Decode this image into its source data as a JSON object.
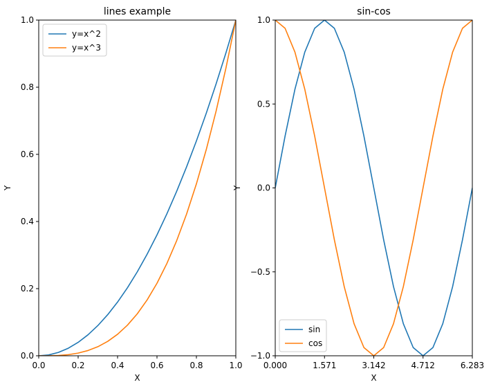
{
  "chart_data": [
    {
      "type": "line",
      "title": "lines example",
      "xlabel": "X",
      "ylabel": "Y",
      "xlim": [
        0,
        1
      ],
      "ylim": [
        0,
        1
      ],
      "xticks": [
        0.0,
        0.2,
        0.4,
        0.6,
        0.8,
        1.0
      ],
      "xtick_labels": [
        "0.0",
        "0.2",
        "0.4",
        "0.6",
        "0.8",
        "1.0"
      ],
      "yticks": [
        0.0,
        0.2,
        0.4,
        0.6,
        0.8,
        1.0
      ],
      "ytick_labels": [
        "0.0",
        "0.2",
        "0.4",
        "0.6",
        "0.8",
        "1.0"
      ],
      "grid": false,
      "legend": "upper-left",
      "series": [
        {
          "name": "y=x^2",
          "color": "#1f77b4",
          "x": [
            0,
            0.05,
            0.1,
            0.15,
            0.2,
            0.25,
            0.3,
            0.35,
            0.4,
            0.45,
            0.5,
            0.55,
            0.6,
            0.65,
            0.7,
            0.75,
            0.8,
            0.85,
            0.9,
            0.95,
            1.0
          ],
          "y": [
            0,
            0.0025,
            0.01,
            0.0225,
            0.04,
            0.0625,
            0.09,
            0.1225,
            0.16,
            0.2025,
            0.25,
            0.3025,
            0.36,
            0.4225,
            0.49,
            0.5625,
            0.64,
            0.7225,
            0.81,
            0.9025,
            1.0
          ]
        },
        {
          "name": "y=x^3",
          "color": "#ff7f0e",
          "x": [
            0,
            0.05,
            0.1,
            0.15,
            0.2,
            0.25,
            0.3,
            0.35,
            0.4,
            0.45,
            0.5,
            0.55,
            0.6,
            0.65,
            0.7,
            0.75,
            0.8,
            0.85,
            0.9,
            0.95,
            1.0
          ],
          "y": [
            0,
            0.000125,
            0.001,
            0.003375,
            0.008,
            0.015625,
            0.027,
            0.042875,
            0.064,
            0.091125,
            0.125,
            0.166375,
            0.216,
            0.274625,
            0.343,
            0.421875,
            0.512,
            0.614125,
            0.729,
            0.857375,
            1.0
          ]
        }
      ]
    },
    {
      "type": "line",
      "title": "sin-cos",
      "xlabel": "X",
      "ylabel": "Y",
      "xlim": [
        0,
        6.283
      ],
      "ylim": [
        -1,
        1
      ],
      "xticks": [
        0,
        1.571,
        3.142,
        4.712,
        6.283
      ],
      "xtick_labels": [
        "0.000",
        "1.571",
        "3.142",
        "4.712",
        "6.283"
      ],
      "yticks": [
        -1.0,
        -0.5,
        0.0,
        0.5,
        1.0
      ],
      "ytick_labels": [
        "−1.0",
        "−0.5",
        "0.0",
        "0.5",
        "1.0"
      ],
      "grid": false,
      "legend": "lower-left",
      "series": [
        {
          "name": "sin",
          "color": "#1f77b4",
          "x": [
            0,
            0.314,
            0.628,
            0.942,
            1.257,
            1.571,
            1.885,
            2.199,
            2.513,
            2.827,
            3.142,
            3.456,
            3.77,
            4.084,
            4.398,
            4.712,
            5.027,
            5.341,
            5.655,
            5.969,
            6.283
          ],
          "y": [
            0,
            0.309,
            0.588,
            0.809,
            0.951,
            1.0,
            0.951,
            0.809,
            0.588,
            0.309,
            0,
            -0.309,
            -0.588,
            -0.809,
            -0.951,
            -1.0,
            -0.951,
            -0.809,
            -0.588,
            -0.309,
            0
          ]
        },
        {
          "name": "cos",
          "color": "#ff7f0e",
          "x": [
            0,
            0.314,
            0.628,
            0.942,
            1.257,
            1.571,
            1.885,
            2.199,
            2.513,
            2.827,
            3.142,
            3.456,
            3.77,
            4.084,
            4.398,
            4.712,
            5.027,
            5.341,
            5.655,
            5.969,
            6.283
          ],
          "y": [
            1.0,
            0.951,
            0.809,
            0.588,
            0.309,
            0,
            -0.309,
            -0.588,
            -0.809,
            -0.951,
            -1.0,
            -0.951,
            -0.809,
            -0.588,
            -0.309,
            0,
            0.309,
            0.588,
            0.809,
            0.951,
            1.0
          ]
        }
      ]
    }
  ]
}
